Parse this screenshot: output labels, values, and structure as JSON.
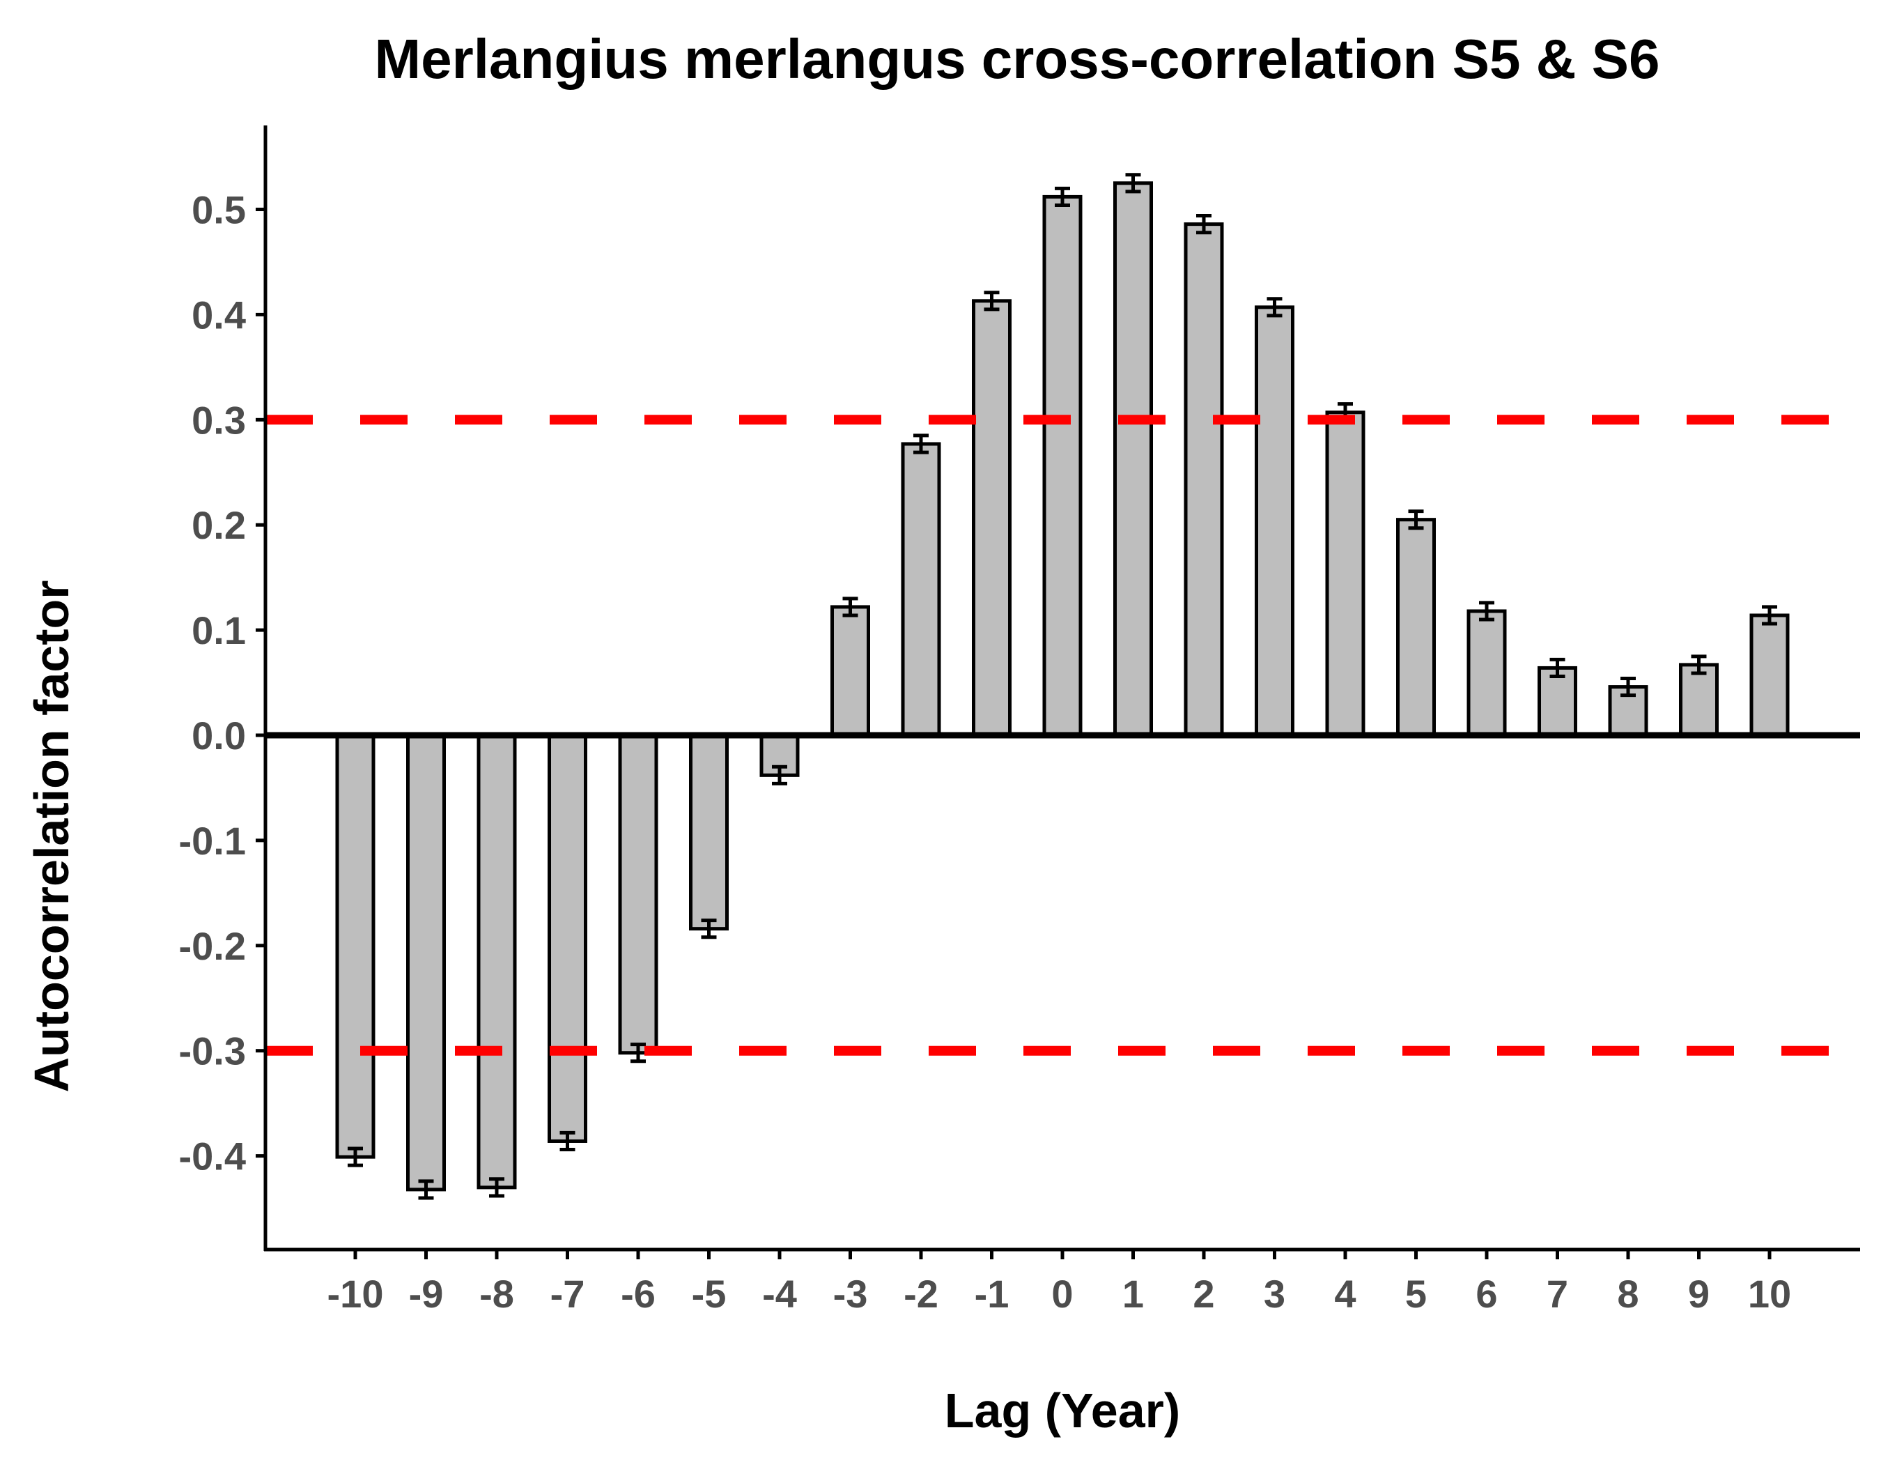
{
  "chart_data": {
    "type": "bar",
    "title": "Merlangius merlangus cross-correlation S5 & S6",
    "xlabel": "Lag (Year)",
    "ylabel": "Autocorrelation factor",
    "categories": [
      "-10",
      "-9",
      "-8",
      "-7",
      "-6",
      "-5",
      "-4",
      "-3",
      "-2",
      "-1",
      "0",
      "1",
      "2",
      "3",
      "4",
      "5",
      "6",
      "7",
      "8",
      "9",
      "10"
    ],
    "values": [
      -0.401,
      -0.432,
      -0.43,
      -0.386,
      -0.302,
      -0.184,
      -0.038,
      0.122,
      0.277,
      0.413,
      0.512,
      0.525,
      0.486,
      0.407,
      0.307,
      0.205,
      0.118,
      0.064,
      0.046,
      0.067,
      0.114
    ],
    "error": [
      0.008,
      0.008,
      0.008,
      0.008,
      0.008,
      0.008,
      0.008,
      0.008,
      0.008,
      0.008,
      0.008,
      0.008,
      0.008,
      0.008,
      0.008,
      0.008,
      0.008,
      0.008,
      0.008,
      0.008,
      0.008
    ],
    "yticks": [
      "-0.4",
      "-0.3",
      "-0.2",
      "-0.1",
      "0.0",
      "0.1",
      "0.2",
      "0.3",
      "0.4",
      "0.5"
    ],
    "ylim": [
      -0.49,
      0.58
    ],
    "reference_lines": [
      0.3,
      -0.3
    ],
    "zero_line": 0,
    "grid": false,
    "legend": "none",
    "colors": {
      "bar_fill": "#bebebe",
      "bar_stroke": "#000000",
      "error_bar": "#000000",
      "reference_line": "#ff0000",
      "axis": "#000000",
      "tick_label": "#4d4d4d"
    }
  }
}
